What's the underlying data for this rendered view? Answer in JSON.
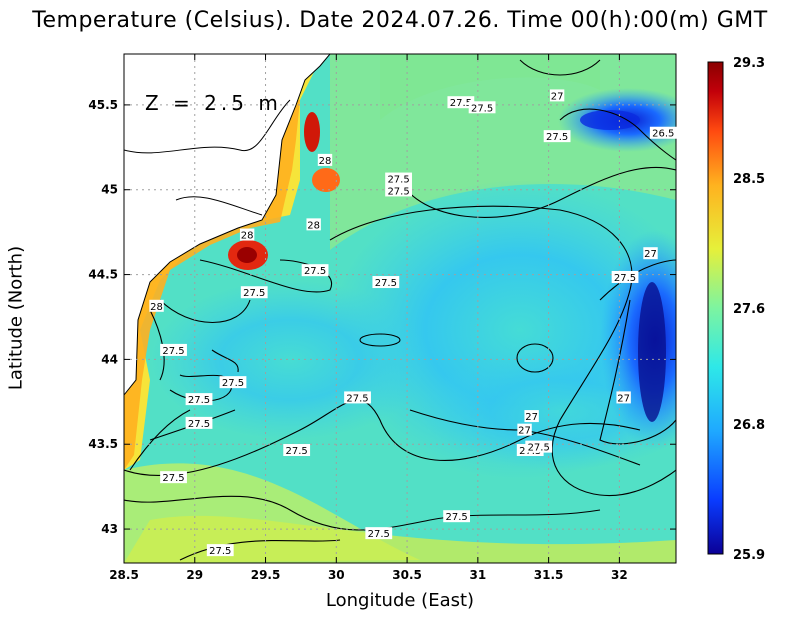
{
  "title": "Temperature (Celsius). Date 2024.07.26. Time 00(h):00(m) GMT",
  "depth_label": "Z = 2.5 m",
  "x_axis": {
    "label": "Longitude (East)",
    "range": [
      28.5,
      32.4
    ],
    "ticks": [
      "28.5",
      "29",
      "29.5",
      "30",
      "30.5",
      "31",
      "31.5",
      "32"
    ]
  },
  "y_axis": {
    "label": "Latitude (North)",
    "range": [
      42.8,
      45.8
    ],
    "ticks": [
      "43",
      "43.5",
      "44",
      "44.5",
      "45",
      "45.5"
    ]
  },
  "colorbar": {
    "min": 25.9,
    "max": 29.3,
    "tick_labels": [
      "29.3",
      "28.5",
      "27.6",
      "26.8",
      "25.9"
    ],
    "colors": [
      "#0b0096",
      "#0a3cff",
      "#1fa9ff",
      "#2ee8e8",
      "#7df4a0",
      "#e6f03a",
      "#ffb21f",
      "#ff4a10",
      "#c2000a",
      "#8a0000"
    ]
  },
  "contour_labels": [
    {
      "text": "27.5",
      "lon": 30.88,
      "lat": 45.51
    },
    {
      "text": "27.5",
      "lon": 31.03,
      "lat": 45.48
    },
    {
      "text": "27",
      "lon": 31.56,
      "lat": 45.55
    },
    {
      "text": "26.5",
      "lon": 32.31,
      "lat": 45.33
    },
    {
      "text": "27.5",
      "lon": 31.56,
      "lat": 45.31
    },
    {
      "text": "28",
      "lon": 29.92,
      "lat": 45.17
    },
    {
      "text": "27.5",
      "lon": 30.44,
      "lat": 45.06
    },
    {
      "text": "27.5",
      "lon": 30.44,
      "lat": 44.99
    },
    {
      "text": "28",
      "lon": 29.84,
      "lat": 44.79
    },
    {
      "text": "28",
      "lon": 29.37,
      "lat": 44.73
    },
    {
      "text": "27",
      "lon": 32.22,
      "lat": 44.62
    },
    {
      "text": "27.5",
      "lon": 29.85,
      "lat": 44.52
    },
    {
      "text": "27.5",
      "lon": 30.35,
      "lat": 44.45
    },
    {
      "text": "27.5",
      "lon": 32.04,
      "lat": 44.48
    },
    {
      "text": "27.5",
      "lon": 29.42,
      "lat": 44.39
    },
    {
      "text": "28",
      "lon": 28.73,
      "lat": 44.31
    },
    {
      "text": "27.5",
      "lon": 28.85,
      "lat": 44.05
    },
    {
      "text": "27.5",
      "lon": 29.27,
      "lat": 43.86
    },
    {
      "text": "27.5",
      "lon": 30.15,
      "lat": 43.77
    },
    {
      "text": "27.5",
      "lon": 29.03,
      "lat": 43.76
    },
    {
      "text": "27",
      "lon": 32.03,
      "lat": 43.77
    },
    {
      "text": "27",
      "lon": 31.38,
      "lat": 43.66
    },
    {
      "text": "27",
      "lon": 31.33,
      "lat": 43.58
    },
    {
      "text": "27.5",
      "lon": 29.03,
      "lat": 43.62
    },
    {
      "text": "27.5",
      "lon": 29.72,
      "lat": 43.46
    },
    {
      "text": "27.5",
      "lon": 31.37,
      "lat": 43.46
    },
    {
      "text": "27.5",
      "lon": 28.85,
      "lat": 43.3
    },
    {
      "text": "27.5",
      "lon": 31.43,
      "lat": 43.48
    },
    {
      "text": "27.5",
      "lon": 30.85,
      "lat": 43.07
    },
    {
      "text": "27.5",
      "lon": 30.3,
      "lat": 42.97
    },
    {
      "text": "27.5",
      "lon": 29.18,
      "lat": 42.87
    }
  ]
}
